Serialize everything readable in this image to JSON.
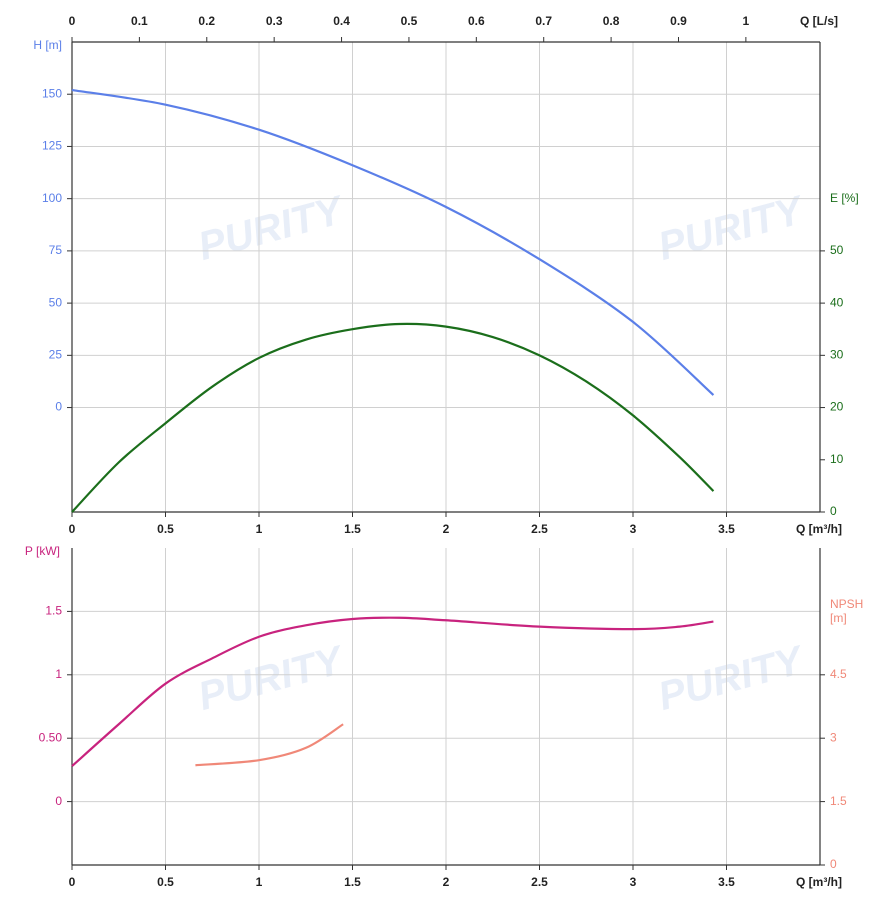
{
  "watermark": "PURITY",
  "chart_data": [
    {
      "type": "line",
      "xlabel": "Q [m³/h]",
      "xlim": [
        0,
        4
      ],
      "xticks": [
        0,
        0.5,
        1,
        1.5,
        2,
        2.5,
        3,
        3.5
      ],
      "x2label": "Q [L/s]",
      "x2lim": [
        0,
        1.11
      ],
      "x2ticks": [
        0,
        0.1,
        0.2,
        0.3,
        0.4,
        0.5,
        0.6,
        0.7,
        0.8,
        0.9,
        1
      ],
      "ylabel": "H [m]",
      "ylim": [
        -50,
        175
      ],
      "yticks": [
        0,
        25,
        50,
        75,
        100,
        125,
        150
      ],
      "ycolor": "#5b7fe8",
      "y2label": "E [%]",
      "y2lim": [
        0,
        90
      ],
      "y2ticks": [
        0,
        10,
        20,
        30,
        40,
        50
      ],
      "y2color": "#1b6e1b",
      "grid": true,
      "series": [
        {
          "name": "H",
          "color": "#5b7fe8",
          "x": [
            0,
            0.5,
            1,
            1.5,
            2,
            2.5,
            3,
            3.43
          ],
          "values": [
            152,
            145,
            133,
            116,
            96,
            71,
            41,
            6
          ]
        },
        {
          "name": "E",
          "color": "#1b6e1b",
          "axis": "y2",
          "x": [
            0,
            0.25,
            0.5,
            0.75,
            1,
            1.25,
            1.5,
            1.75,
            2,
            2.25,
            2.5,
            2.75,
            3,
            3.25,
            3.43
          ],
          "values": [
            0,
            9.5,
            17,
            24,
            29.5,
            33,
            35,
            36,
            35.5,
            33.5,
            30,
            25,
            18.5,
            10.5,
            4
          ]
        }
      ]
    },
    {
      "type": "line",
      "xlabel": "Q [m³/h]",
      "xlim": [
        0,
        4
      ],
      "xticks": [
        0,
        0.5,
        1,
        1.5,
        2,
        2.5,
        3,
        3.5
      ],
      "ylabel": "P [kW]",
      "ylim": [
        -0.5,
        2
      ],
      "yticks": [
        0,
        {
          "value": 0.5,
          "label": "0.50"
        },
        1,
        1.5
      ],
      "ycolor": "#c8237e",
      "y2label": "NPSH [m]",
      "y2lim": [
        0,
        7.5
      ],
      "y2ticks": [
        0,
        1.5,
        3,
        4.5
      ],
      "y2color": "#f08878",
      "grid": true,
      "series": [
        {
          "name": "P",
          "color": "#c8237e",
          "x": [
            0,
            0.25,
            0.5,
            0.75,
            1,
            1.25,
            1.5,
            1.75,
            2,
            2.5,
            3,
            3.25,
            3.43
          ],
          "values": [
            0.28,
            0.61,
            0.93,
            1.13,
            1.3,
            1.39,
            1.44,
            1.45,
            1.43,
            1.38,
            1.36,
            1.38,
            1.42
          ]
        },
        {
          "name": "NPSH",
          "color": "#f08878",
          "axis": "y2",
          "x": [
            0.66,
            1,
            1.25,
            1.45
          ],
          "values": [
            2.36,
            2.48,
            2.77,
            3.33
          ]
        }
      ]
    }
  ]
}
